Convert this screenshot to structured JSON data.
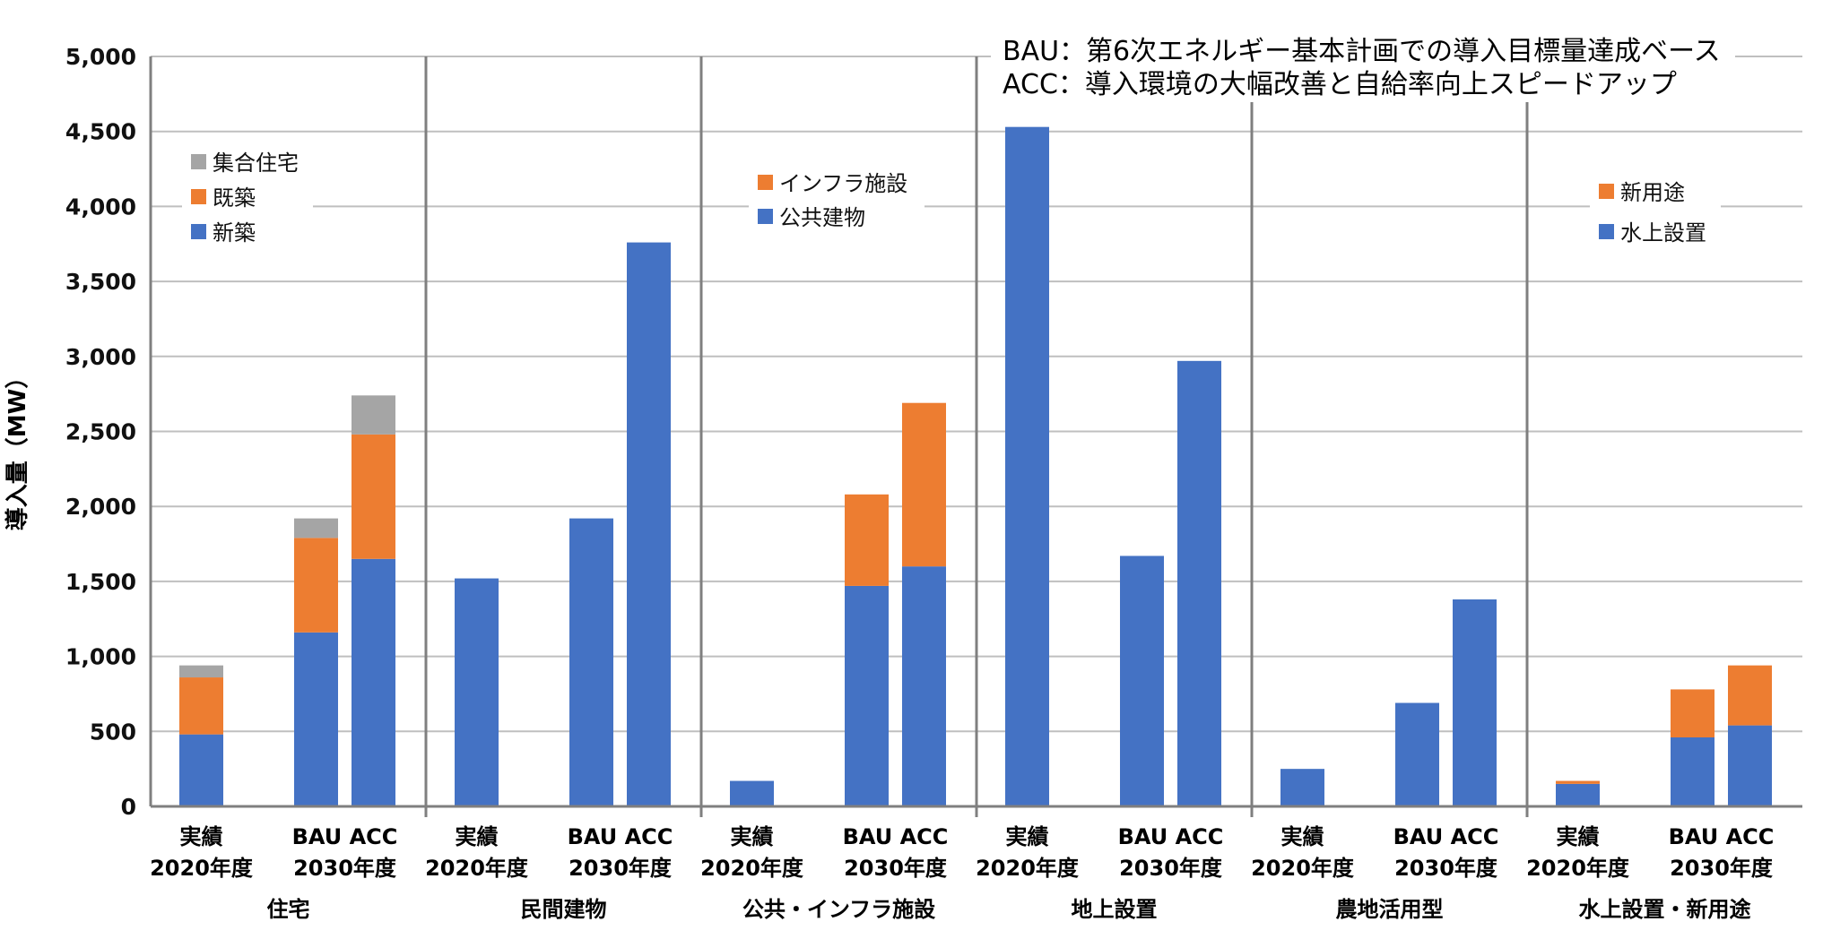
{
  "chart_data": {
    "type": "bar",
    "stacked": true,
    "ylabel": "導入量（MW）",
    "ylim": [
      0,
      5000
    ],
    "yticks": [
      "0",
      "500",
      "1,000",
      "1,500",
      "2,000",
      "2,500",
      "3,000",
      "3,500",
      "4,000",
      "4,500",
      "5,000"
    ],
    "grid": true,
    "notes": [
      "BAU：第6次エネルギー基本計画での導入目標量達成ベース",
      "ACC：導入環境の大幅改善と自給率向上スピードアップ"
    ],
    "colors": {
      "blue": "#4472C4",
      "orange": "#ED7D31",
      "gray": "#A5A5A5"
    },
    "groups": [
      {
        "name": "住宅",
        "labels": {
          "actual_top": "実績",
          "actual_bottom": "2020年度",
          "target_top": "BAU ACC",
          "target_bottom": "2030年度"
        },
        "legend": [
          {
            "name": "集合住宅",
            "color": "#A5A5A5"
          },
          {
            "name": "既築",
            "color": "#ED7D31"
          },
          {
            "name": "新築",
            "color": "#4472C4"
          }
        ],
        "bars": [
          {
            "category": "実績 2020年度",
            "segments": [
              480,
              380,
              80
            ]
          },
          {
            "category": "BAU 2030年度",
            "segments": [
              1160,
              630,
              130
            ]
          },
          {
            "category": "ACC 2030年度",
            "segments": [
              1650,
              830,
              260
            ]
          }
        ]
      },
      {
        "name": "民間建物",
        "labels": {
          "actual_top": "実績",
          "actual_bottom": "2020年度",
          "target_top": "BAU ACC",
          "target_bottom": "2030年度"
        },
        "legend": [],
        "bars": [
          {
            "category": "実績 2020年度",
            "segments": [
              1520
            ]
          },
          {
            "category": "BAU 2030年度",
            "segments": [
              1920
            ]
          },
          {
            "category": "ACC 2030年度",
            "segments": [
              3760
            ]
          }
        ]
      },
      {
        "name": "公共・インフラ施設",
        "labels": {
          "actual_top": "実績",
          "actual_bottom": "2020年度",
          "target_top": "BAU ACC",
          "target_bottom": "2030年度"
        },
        "legend": [
          {
            "name": "インフラ施設",
            "color": "#ED7D31"
          },
          {
            "name": "公共建物",
            "color": "#4472C4"
          }
        ],
        "bars": [
          {
            "category": "実績 2020年度",
            "segments": [
              170,
              0
            ]
          },
          {
            "category": "BAU 2030年度",
            "segments": [
              1470,
              610
            ]
          },
          {
            "category": "ACC 2030年度",
            "segments": [
              1600,
              1090
            ]
          }
        ]
      },
      {
        "name": "地上設置",
        "labels": {
          "actual_top": "実績",
          "actual_bottom": "2020年度",
          "target_top": "BAU ACC",
          "target_bottom": "2030年度"
        },
        "legend": [],
        "bars": [
          {
            "category": "実績 2020年度",
            "segments": [
              4530
            ]
          },
          {
            "category": "BAU 2030年度",
            "segments": [
              1670
            ]
          },
          {
            "category": "ACC 2030年度",
            "segments": [
              2970
            ]
          }
        ]
      },
      {
        "name": "農地活用型",
        "labels": {
          "actual_top": "実績",
          "actual_bottom": "2020年度",
          "target_top": "BAU ACC",
          "target_bottom": "2030年度"
        },
        "legend": [],
        "bars": [
          {
            "category": "実績 2020年度",
            "segments": [
              250
            ]
          },
          {
            "category": "BAU 2030年度",
            "segments": [
              690
            ]
          },
          {
            "category": "ACC 2030年度",
            "segments": [
              1380
            ]
          }
        ]
      },
      {
        "name": "水上設置・新用途",
        "labels": {
          "actual_top": "実績",
          "actual_bottom": "2020年度",
          "target_top": "BAU ACC",
          "target_bottom": "2030年度"
        },
        "legend": [
          {
            "name": "新用途",
            "color": "#ED7D31"
          },
          {
            "name": "水上設置",
            "color": "#4472C4"
          }
        ],
        "bars": [
          {
            "category": "実績 2020年度",
            "segments": [
              150,
              20
            ]
          },
          {
            "category": "BAU 2030年度",
            "segments": [
              460,
              320
            ]
          },
          {
            "category": "ACC 2030年度",
            "segments": [
              540,
              400
            ]
          }
        ]
      }
    ]
  }
}
